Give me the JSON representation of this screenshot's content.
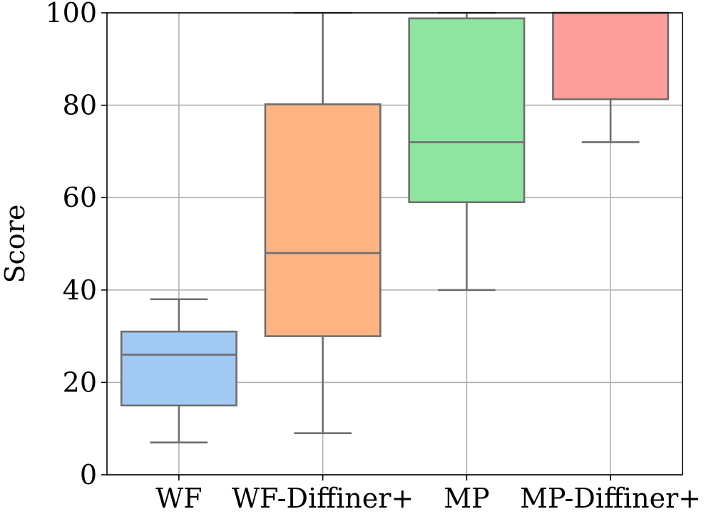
{
  "chart_data": {
    "type": "box",
    "title": "",
    "xlabel": "",
    "ylabel": "Score",
    "ylim": [
      0,
      100
    ],
    "yticks": [
      0,
      20,
      40,
      60,
      80,
      100
    ],
    "grid": true,
    "categories": [
      "WF",
      "WF-Diffiner+",
      "MP",
      "MP-Diffiner+"
    ],
    "boxes": [
      {
        "name": "WF",
        "whisker_low": 7,
        "q1": 15,
        "median": 26,
        "q3": 31,
        "whisker_high": 38,
        "color": "#a1c9f4"
      },
      {
        "name": "WF-Diffiner+",
        "whisker_low": 9,
        "q1": 30,
        "median": 48,
        "q3": 80.2,
        "whisker_high": 100,
        "color": "#ffb482"
      },
      {
        "name": "MP",
        "whisker_low": 40,
        "q1": 59,
        "median": 72,
        "q3": 98.8,
        "whisker_high": 100,
        "color": "#8de5a1"
      },
      {
        "name": "MP-Diffiner+",
        "whisker_low": 72,
        "q1": 81.3,
        "median": 100,
        "q3": 100,
        "whisker_high": 100,
        "color": "#ff9f9b"
      }
    ]
  }
}
